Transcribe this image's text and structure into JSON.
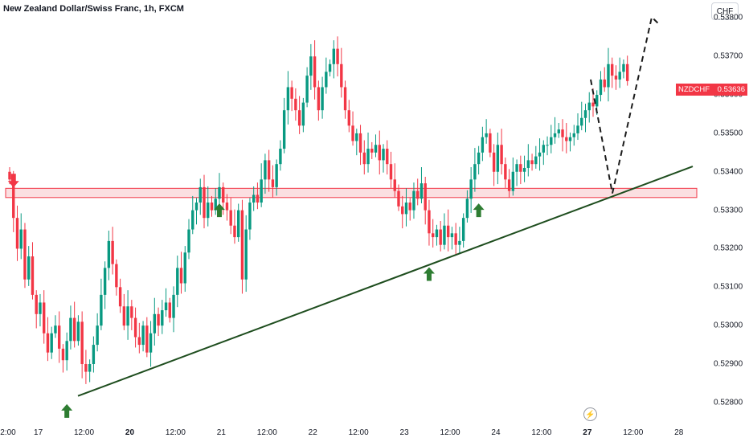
{
  "title": "New Zealand Dollar/Swiss Franc, 1h, FXCM",
  "currency_button": "CHF",
  "price_badge": {
    "symbol": "NZDCHF",
    "price": "0.53636",
    "color": "#f23645"
  },
  "chart_data": {
    "type": "candlestick",
    "title": "New Zealand Dollar/Swiss Franc, 1h, FXCM",
    "ylim": [
      0.5276,
      0.5383
    ],
    "xlim": [
      0,
      862
    ],
    "y_ticks": [
      "0.53800",
      "0.53700",
      "0.53600",
      "0.53500",
      "0.53400",
      "0.53300",
      "0.53200",
      "0.53100",
      "0.53000",
      "0.52900",
      "0.52800"
    ],
    "x_ticks": [
      {
        "label": "2:00",
        "x": -0.5,
        "bold": false
      },
      {
        "label": "17",
        "x": 7.5,
        "bold": false
      },
      {
        "label": "12:00",
        "x": 19.5,
        "bold": false
      },
      {
        "label": "20",
        "x": 31.5,
        "bold": true
      },
      {
        "label": "12:00",
        "x": 43.5,
        "bold": false
      },
      {
        "label": "21",
        "x": 55.5,
        "bold": false
      },
      {
        "label": "12:00",
        "x": 67.5,
        "bold": false
      },
      {
        "label": "22",
        "x": 79.5,
        "bold": false
      },
      {
        "label": "12:00",
        "x": 91.5,
        "bold": false
      },
      {
        "label": "23",
        "x": 103.5,
        "bold": false
      },
      {
        "label": "12:00",
        "x": 115.5,
        "bold": false
      },
      {
        "label": "24",
        "x": 127.5,
        "bold": false
      },
      {
        "label": "12:00",
        "x": 139.5,
        "bold": false
      },
      {
        "label": "27",
        "x": 151.5,
        "bold": true
      },
      {
        "label": "12:00",
        "x": 163.5,
        "bold": false
      },
      {
        "label": "28",
        "x": 175.5,
        "bold": false
      }
    ],
    "colors": {
      "up": "#089981",
      "down": "#f23645",
      "zone_fill": "#f8c9cd",
      "zone_border": "#f23645",
      "trendline": "#1e4d1e",
      "arrow_up": "#2e7d32",
      "arrow_down": "#f23645"
    },
    "candle_closes": [
      0.5338,
      0.5328,
      0.532,
      0.5325,
      0.5312,
      0.5318,
      0.5308,
      0.5303,
      0.5306,
      0.5298,
      0.5293,
      0.5298,
      0.53,
      0.5294,
      0.5291,
      0.5296,
      0.5302,
      0.5296,
      0.5301,
      0.529,
      0.5288,
      0.529,
      0.5295,
      0.53,
      0.5308,
      0.5315,
      0.5322,
      0.5316,
      0.531,
      0.5305,
      0.53,
      0.5305,
      0.5302,
      0.5297,
      0.5295,
      0.53,
      0.5293,
      0.5298,
      0.5303,
      0.53,
      0.5304,
      0.5306,
      0.5302,
      0.5308,
      0.5315,
      0.5311,
      0.5319,
      0.5325,
      0.533,
      0.5332,
      0.5336,
      0.5328,
      0.5332,
      0.533,
      0.5333,
      0.5336,
      0.5332,
      0.533,
      0.5326,
      0.5323,
      0.533,
      0.5312,
      0.5325,
      0.5332,
      0.5334,
      0.5332,
      0.5338,
      0.5343,
      0.5338,
      0.5336,
      0.5342,
      0.5346,
      0.5356,
      0.5362,
      0.5359,
      0.5356,
      0.5352,
      0.5358,
      0.5365,
      0.537,
      0.5362,
      0.5356,
      0.5362,
      0.5366,
      0.5368,
      0.5372,
      0.5368,
      0.5362,
      0.5356,
      0.5352,
      0.5348,
      0.535,
      0.5345,
      0.5342,
      0.5346,
      0.5345,
      0.5347,
      0.5343,
      0.5346,
      0.5342,
      0.5338,
      0.5335,
      0.5331,
      0.5329,
      0.5332,
      0.533,
      0.5335,
      0.5333,
      0.5337,
      0.533,
      0.5324,
      0.5323,
      0.5325,
      0.5321,
      0.5326,
      0.5323,
      0.5324,
      0.5321,
      0.5322,
      0.5328,
      0.5333,
      0.5338,
      0.5342,
      0.5345,
      0.5349,
      0.535,
      0.5345,
      0.534,
      0.5347,
      0.5342,
      0.5338,
      0.5335,
      0.534,
      0.5342,
      0.534,
      0.5341,
      0.5343,
      0.5342,
      0.5344,
      0.5345,
      0.5347,
      0.5347,
      0.5349,
      0.535,
      0.5351,
      0.5349,
      0.5348,
      0.5349,
      0.535,
      0.5352,
      0.5354,
      0.5356,
      0.5358,
      0.5357,
      0.536,
      0.5364,
      0.5362,
      0.5368,
      0.5365,
      0.5364,
      0.5366,
      0.5368,
      0.53636
    ],
    "resistance_zone": [
      0.53333,
      0.53357
    ],
    "trendline": [
      {
        "x": 0,
        "y": 0.52817
      },
      {
        "x": 862,
        "y": 0.53414
      }
    ],
    "projection": [
      {
        "x": 0,
        "y": 0.5364
      },
      {
        "x": 0,
        "y": 0.53344
      },
      {
        "x": 0,
        "y": 0.53802
      },
      {
        "x": 0,
        "y": 0.5378
      }
    ],
    "arrows": [
      {
        "dir": "down",
        "idx": 1,
        "y": 0.53376
      },
      {
        "dir": "up",
        "idx": 15,
        "y": 0.52779
      },
      {
        "dir": "up",
        "idx": 55,
        "y": 0.53301
      },
      {
        "dir": "up",
        "idx": 110,
        "y": 0.53135
      },
      {
        "dir": "up",
        "idx": 123,
        "y": 0.53301
      }
    ]
  }
}
